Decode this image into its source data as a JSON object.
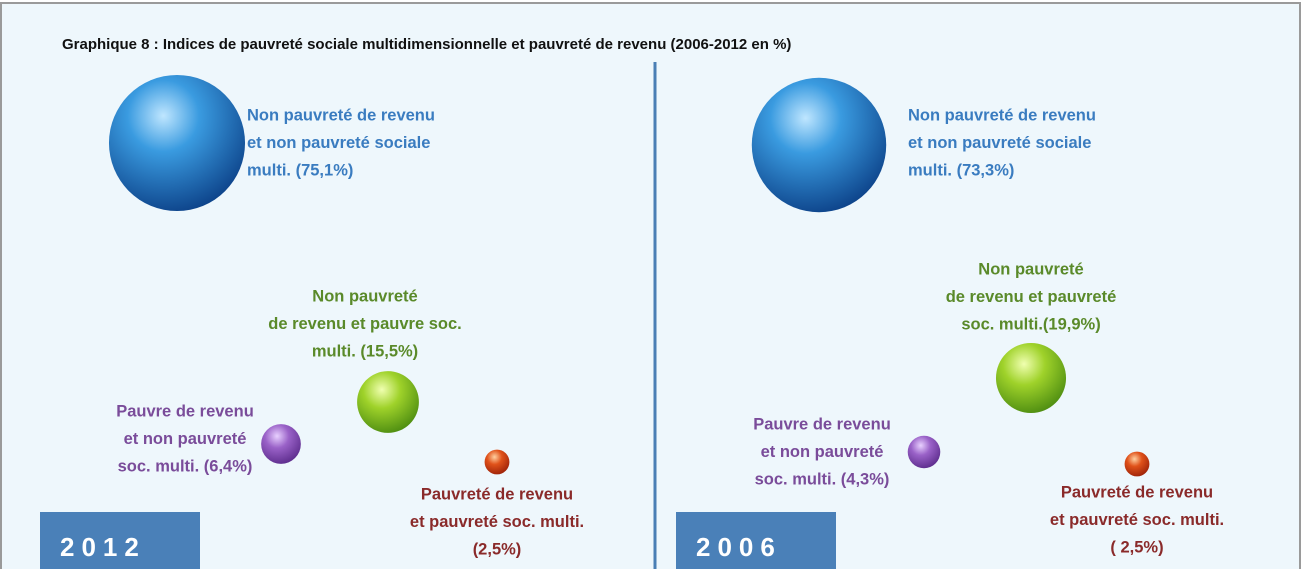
{
  "title": "Graphique 8 : Indices de pauvreté sociale multidimensionnelle et pauvreté de revenu (2006-2012 en %)",
  "panels": [
    {
      "year": "2012",
      "items": [
        {
          "label": [
            "Non pauvreté de revenu",
            "et non pauvreté sociale",
            "multi. (75,1%)"
          ],
          "value": 75.1
        },
        {
          "label": [
            "Non pauvreté",
            "de revenu et pauvre soc.",
            "multi. (15,5%)"
          ],
          "value": 15.5
        },
        {
          "label": [
            "Pauvre de revenu",
            "et non pauvreté",
            "soc. multi. (6,4%)"
          ],
          "value": 6.4
        },
        {
          "label": [
            "Pauvreté de revenu",
            "et pauvreté soc. multi.",
            "(2,5%)"
          ],
          "value": 2.5
        }
      ]
    },
    {
      "year": "2006",
      "items": [
        {
          "label": [
            "Non pauvreté de revenu",
            "et non pauvreté sociale",
            "multi. (73,3%)"
          ],
          "value": 73.3
        },
        {
          "label": [
            "Non pauvreté",
            "de revenu et pauvreté",
            "soc. multi.(19,9%)"
          ],
          "value": 19.9
        },
        {
          "label": [
            "Pauvre de revenu",
            "et non pauvreté",
            "soc. multi. (4,3%)"
          ],
          "value": 4.3
        },
        {
          "label": [
            "Pauvreté de revenu",
            "et pauvreté soc. multi.",
            "( 2,5%)"
          ],
          "value": 2.5
        }
      ]
    }
  ]
}
